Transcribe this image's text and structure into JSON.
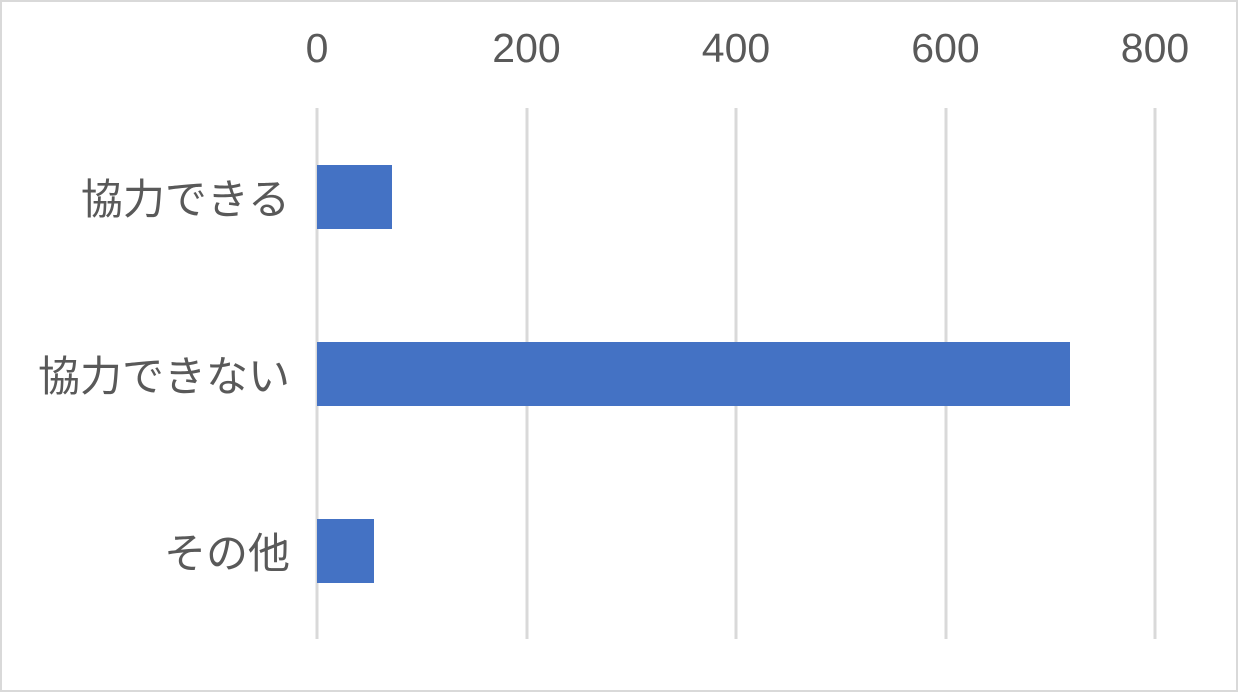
{
  "chart_data": {
    "type": "bar",
    "orientation": "horizontal",
    "title": "",
    "xlabel": "",
    "ylabel": "",
    "categories": [
      "協力できる",
      "協力できない",
      "その他"
    ],
    "values": [
      72,
      719,
      54
    ],
    "xlim": [
      0,
      800
    ],
    "x_ticks": [
      0,
      200,
      400,
      600,
      800
    ],
    "grid": "vertical-only",
    "legend": "none",
    "colors": {
      "bar": "#4472C4",
      "gridline": "#d9d9d9",
      "frame_border": "#d9d9d9",
      "text": "#595959",
      "background": "#ffffff"
    }
  }
}
